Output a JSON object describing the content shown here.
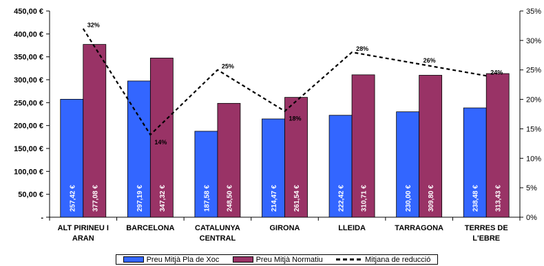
{
  "chart_data": {
    "type": "bar",
    "categories": [
      [
        "ALT PIRINEU I",
        "ARAN"
      ],
      [
        "BARCELONA"
      ],
      [
        "CATALUNYA",
        "CENTRAL"
      ],
      [
        "GIRONA"
      ],
      [
        "LLEIDA"
      ],
      [
        "TARRAGONA"
      ],
      [
        "TERRES DE",
        "L'EBRE"
      ]
    ],
    "series": [
      {
        "name": "Preu Mitjà Pla de Xoc",
        "color": "#3366ff",
        "values": [
          257.42,
          297.19,
          187.58,
          214.47,
          222.42,
          230.0,
          238.48
        ],
        "labels": [
          "257,42 €",
          "297,19 €",
          "187,58 €",
          "214,47 €",
          "222,42 €",
          "230,00 €",
          "238,48 €"
        ]
      },
      {
        "name": "Preu Mitjà Normatiu",
        "color": "#993366",
        "values": [
          377.08,
          347.32,
          248.5,
          261.54,
          310.71,
          309.8,
          313.43
        ],
        "labels": [
          "377,08 €",
          "347,32 €",
          "248,50 €",
          "261,54 €",
          "310,71 €",
          "309,80 €",
          "313,43 €"
        ]
      }
    ],
    "line_series": {
      "name": "Mitjana de reducció",
      "axis": "right",
      "values": [
        32,
        14,
        25,
        18,
        28,
        26,
        24
      ],
      "labels": [
        "32%",
        "14%",
        "25%",
        "18%",
        "28%",
        "26%",
        "24%"
      ]
    },
    "y_left": {
      "ylim": [
        0,
        450
      ],
      "ticks": [
        0,
        50,
        100,
        150,
        200,
        250,
        300,
        350,
        400,
        450
      ],
      "tick_labels": [
        "-",
        "50,00 €",
        "100,00 €",
        "150,00 €",
        "200,00 €",
        "250,00 €",
        "300,00 €",
        "350,00 €",
        "400,00 €",
        "450,00 €"
      ]
    },
    "y_right": {
      "ylim": [
        0,
        35
      ],
      "ticks": [
        0,
        5,
        10,
        15,
        20,
        25,
        30,
        35
      ],
      "tick_labels": [
        "0%",
        "5%",
        "10%",
        "15%",
        "20%",
        "25%",
        "30%",
        "35%"
      ]
    },
    "grid": false,
    "legend_position": "bottom"
  }
}
